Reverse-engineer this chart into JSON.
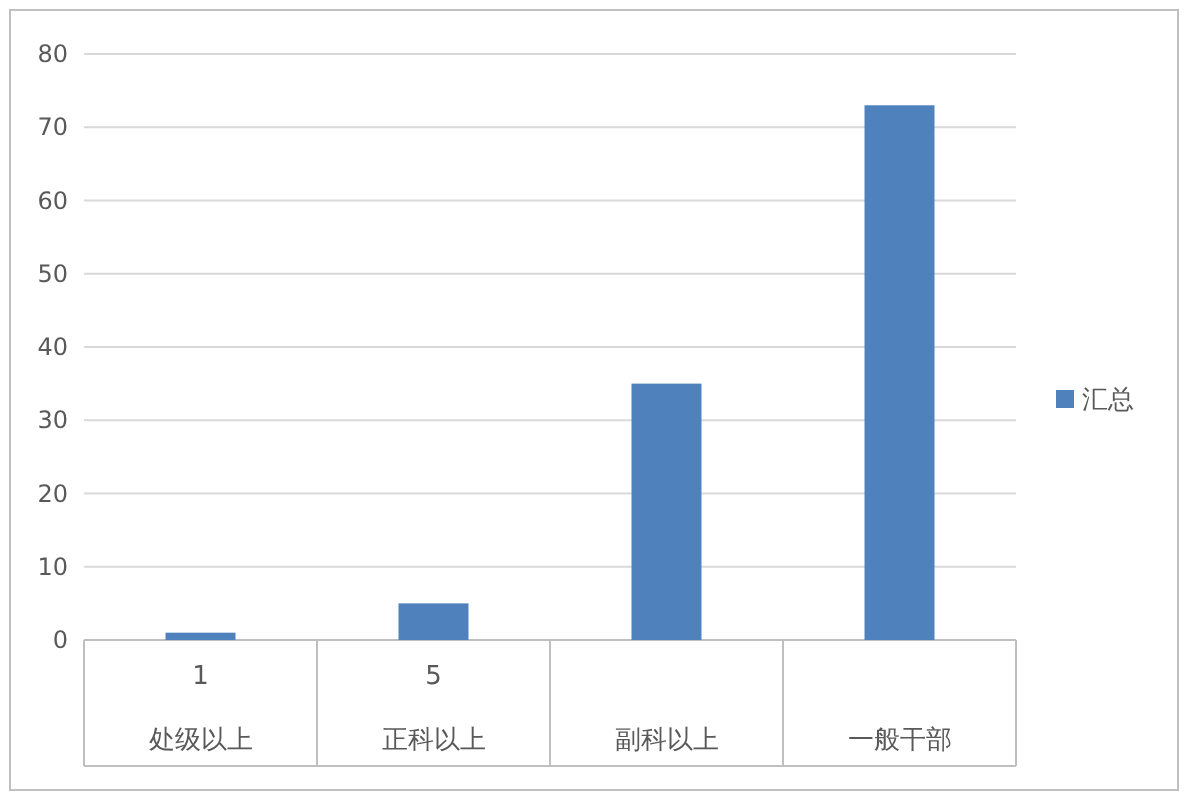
{
  "chart_data": {
    "type": "bar",
    "categories": [
      "处级以上",
      "正科以上",
      "副科以上",
      "一般干部"
    ],
    "series": [
      {
        "name": "汇总",
        "color": "#4f81bd",
        "values": [
          1,
          5,
          35,
          73
        ],
        "value_labels": [
          "1",
          "5",
          null,
          null
        ]
      }
    ],
    "ylim": [
      0,
      80
    ],
    "yticks": [
      0,
      10,
      20,
      30,
      40,
      50,
      60,
      70,
      80
    ],
    "grid": "y",
    "legend": "right"
  }
}
